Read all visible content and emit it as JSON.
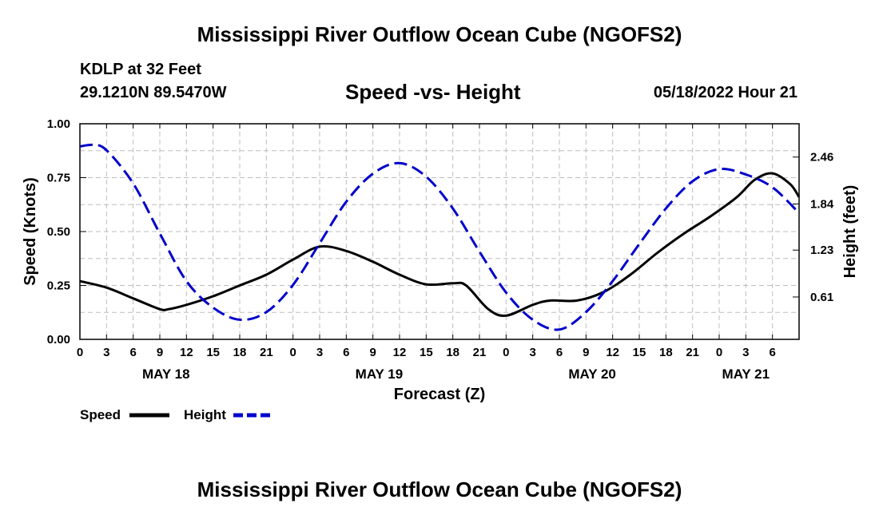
{
  "header": {
    "title": "Mississippi River Outflow Ocean Cube (NGOFS2)",
    "station": "KDLP at 32 Feet",
    "coords": "29.1210N  89.5470W",
    "subtitle": "Speed -vs- Height",
    "datetime": "05/18/2022 Hour 21"
  },
  "footer": {
    "title": "Mississippi River Outflow Ocean Cube (NGOFS2)"
  },
  "chart_data": {
    "type": "line",
    "title": "Speed -vs- Height",
    "xlabel": "Forecast (Z)",
    "ylabel": "Speed (Knots)",
    "y2label": "Height (feet)",
    "x_range_hours": [
      0,
      81
    ],
    "ylim": [
      0,
      1
    ],
    "y2lim": [
      0.05,
      2.9
    ],
    "x_ticks": [
      {
        "h": 0,
        "label": "0"
      },
      {
        "h": 3,
        "label": "3"
      },
      {
        "h": 6,
        "label": "6"
      },
      {
        "h": 9,
        "label": "9"
      },
      {
        "h": 12,
        "label": "12"
      },
      {
        "h": 15,
        "label": "15"
      },
      {
        "h": 18,
        "label": "18"
      },
      {
        "h": 21,
        "label": "21"
      },
      {
        "h": 24,
        "label": "0"
      },
      {
        "h": 27,
        "label": "3"
      },
      {
        "h": 30,
        "label": "6"
      },
      {
        "h": 33,
        "label": "9"
      },
      {
        "h": 36,
        "label": "12"
      },
      {
        "h": 39,
        "label": "15"
      },
      {
        "h": 42,
        "label": "18"
      },
      {
        "h": 45,
        "label": "21"
      },
      {
        "h": 48,
        "label": "0"
      },
      {
        "h": 51,
        "label": "3"
      },
      {
        "h": 54,
        "label": "6"
      },
      {
        "h": 57,
        "label": "9"
      },
      {
        "h": 60,
        "label": "12"
      },
      {
        "h": 63,
        "label": "15"
      },
      {
        "h": 66,
        "label": "18"
      },
      {
        "h": 69,
        "label": "21"
      },
      {
        "h": 72,
        "label": "0"
      },
      {
        "h": 75,
        "label": "3"
      },
      {
        "h": 78,
        "label": "6"
      }
    ],
    "date_labels": [
      {
        "h": 9.7,
        "label": "MAY 18"
      },
      {
        "h": 33.7,
        "label": "MAY 19"
      },
      {
        "h": 57.7,
        "label": "MAY 20"
      },
      {
        "h": 75,
        "label": "MAY 21"
      }
    ],
    "y_ticks": [
      {
        "v": 0,
        "label": "0.00"
      },
      {
        "v": 0.25,
        "label": "0.25"
      },
      {
        "v": 0.5,
        "label": "0.50"
      },
      {
        "v": 0.75,
        "label": "0.75"
      },
      {
        "v": 1,
        "label": "1.00"
      }
    ],
    "y2_ticks": [
      {
        "v": 0.61,
        "label": "0.61"
      },
      {
        "v": 1.23,
        "label": "1.23"
      },
      {
        "v": 1.84,
        "label": "1.84"
      },
      {
        "v": 2.46,
        "label": "2.46"
      }
    ],
    "series": [
      {
        "name": "Speed",
        "axis": "left",
        "color": "#000000",
        "style": "solid",
        "points": [
          [
            0,
            0.27
          ],
          [
            3,
            0.24
          ],
          [
            6,
            0.19
          ],
          [
            9,
            0.14
          ],
          [
            10,
            0.14
          ],
          [
            12,
            0.16
          ],
          [
            15,
            0.2
          ],
          [
            18,
            0.25
          ],
          [
            21,
            0.3
          ],
          [
            24,
            0.37
          ],
          [
            27,
            0.43
          ],
          [
            30,
            0.41
          ],
          [
            33,
            0.36
          ],
          [
            36,
            0.3
          ],
          [
            39,
            0.255
          ],
          [
            42,
            0.26
          ],
          [
            43.5,
            0.25
          ],
          [
            46,
            0.14
          ],
          [
            48,
            0.11
          ],
          [
            51,
            0.16
          ],
          [
            53,
            0.18
          ],
          [
            56,
            0.18
          ],
          [
            59,
            0.22
          ],
          [
            62,
            0.3
          ],
          [
            65,
            0.4
          ],
          [
            68,
            0.49
          ],
          [
            71,
            0.57
          ],
          [
            74,
            0.66
          ],
          [
            76,
            0.74
          ],
          [
            78,
            0.77
          ],
          [
            80,
            0.72
          ],
          [
            81,
            0.66
          ]
        ]
      },
      {
        "name": "Height",
        "axis": "right",
        "color": "#0000cc",
        "style": "dashed",
        "points": [
          [
            0,
            2.6
          ],
          [
            1.5,
            2.62
          ],
          [
            3,
            2.55
          ],
          [
            6,
            2.11
          ],
          [
            9,
            1.45
          ],
          [
            12,
            0.82
          ],
          [
            15,
            0.47
          ],
          [
            18,
            0.31
          ],
          [
            21,
            0.41
          ],
          [
            24,
            0.77
          ],
          [
            27,
            1.32
          ],
          [
            30,
            1.87
          ],
          [
            33,
            2.24
          ],
          [
            36,
            2.38
          ],
          [
            39,
            2.2
          ],
          [
            42,
            1.78
          ],
          [
            45,
            1.21
          ],
          [
            48,
            0.67
          ],
          [
            51,
            0.31
          ],
          [
            54,
            0.18
          ],
          [
            57,
            0.41
          ],
          [
            60,
            0.82
          ],
          [
            63,
            1.31
          ],
          [
            66,
            1.78
          ],
          [
            69,
            2.14
          ],
          [
            72,
            2.3
          ],
          [
            75,
            2.23
          ],
          [
            78,
            2.06
          ],
          [
            81,
            1.72
          ]
        ]
      }
    ]
  }
}
